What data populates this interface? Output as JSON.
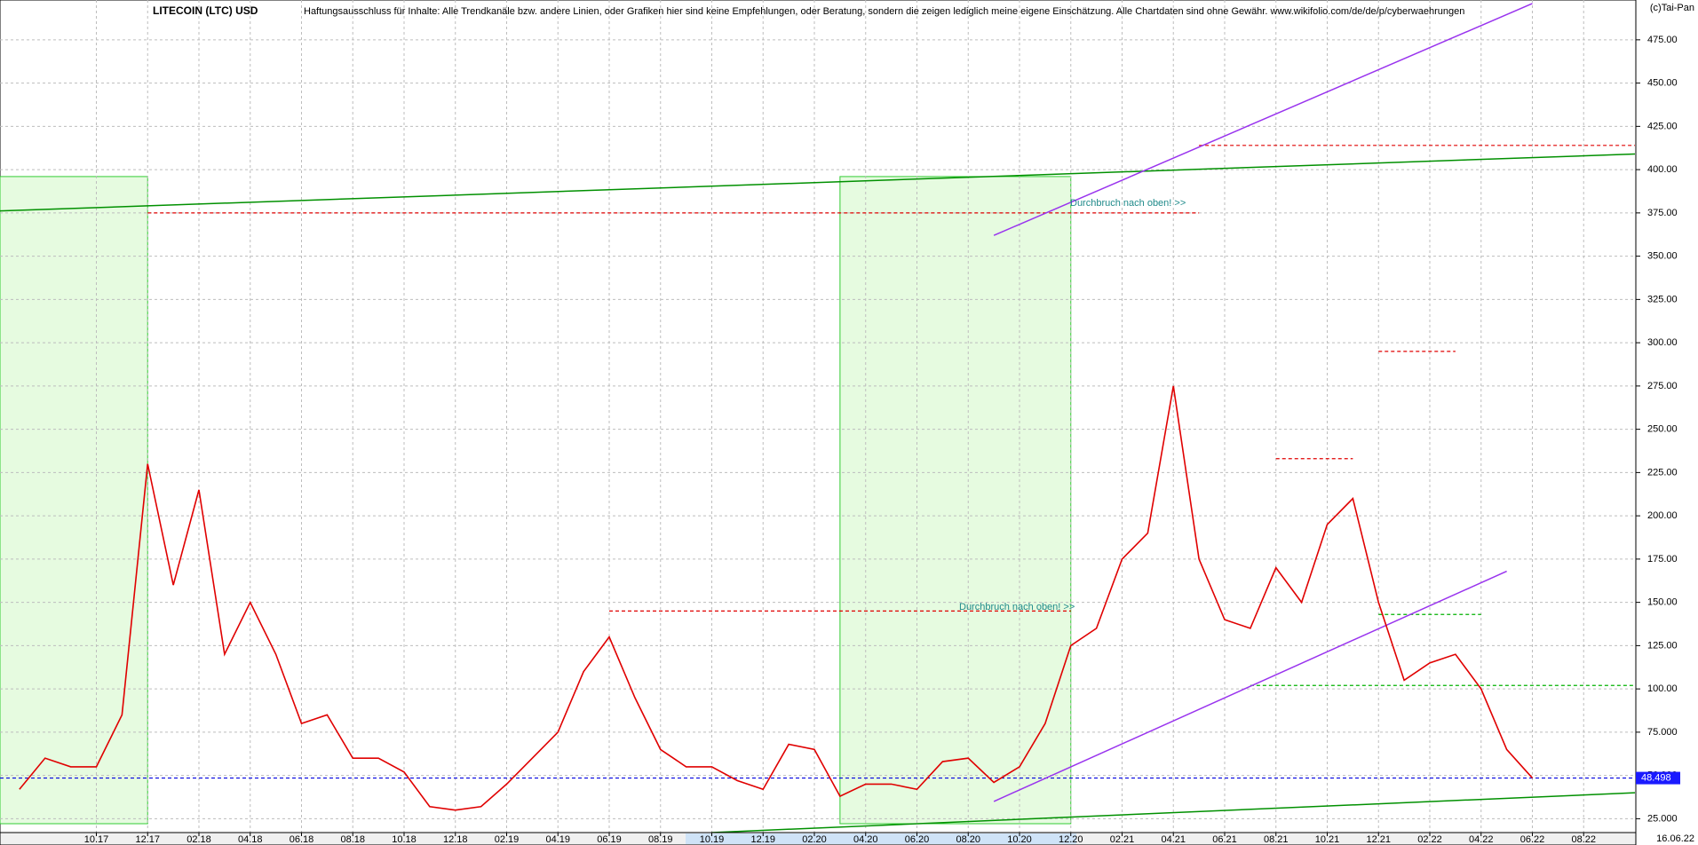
{
  "chart_data": {
    "type": "line",
    "title": "LITECOIN (LTC) USD",
    "subtitle": "Haftungsausschluss für Inhalte: Alle Trendkanäle bzw. andere Linien, oder Grafiken hier sind keine Empfehlungen, oder Beratung, sondern die zeigen lediglich meine eigene Einschätzung. Alle Chartdaten sind ohne Gewähr.  www.wikifolio.com/de/de/p/cyberwaehrungen",
    "copyright": "(c)Tai-Pan",
    "date_label": "16.06.22",
    "annotations": [
      "Durchbruch nach oben! >>",
      "Durchbruch nach oben! >>"
    ],
    "x": [
      "2017-07",
      "2017-08",
      "2017-09",
      "2017-10",
      "2017-11",
      "2017-12",
      "2018-01",
      "2018-02",
      "2018-03",
      "2018-04",
      "2018-05",
      "2018-06",
      "2018-07",
      "2018-08",
      "2018-09",
      "2018-10",
      "2018-11",
      "2018-12",
      "2019-01",
      "2019-02",
      "2019-03",
      "2019-04",
      "2019-05",
      "2019-06",
      "2019-07",
      "2019-08",
      "2019-09",
      "2019-10",
      "2019-11",
      "2019-12",
      "2020-01",
      "2020-02",
      "2020-03",
      "2020-04",
      "2020-05",
      "2020-06",
      "2020-07",
      "2020-08",
      "2020-09",
      "2020-10",
      "2020-11",
      "2020-12",
      "2021-01",
      "2021-02",
      "2021-03",
      "2021-04",
      "2021-05",
      "2021-06",
      "2021-07",
      "2021-08",
      "2021-09",
      "2021-10",
      "2021-11",
      "2021-12",
      "2022-01",
      "2022-02",
      "2022-03",
      "2022-04",
      "2022-05",
      "2022-06"
    ],
    "series": [
      {
        "name": "LTC",
        "color": "#e00000",
        "values": [
          42,
          60,
          55,
          55,
          85,
          230,
          160,
          215,
          120,
          150,
          120,
          80,
          85,
          60,
          60,
          52,
          32,
          30,
          32,
          45,
          60,
          75,
          110,
          130,
          95,
          65,
          55,
          55,
          47,
          42,
          68,
          65,
          38,
          45,
          45,
          42,
          58,
          60,
          46,
          55,
          80,
          125,
          135,
          175,
          190,
          275,
          175,
          140,
          135,
          170,
          150,
          195,
          210,
          150,
          105,
          115,
          120,
          100,
          65,
          48.498
        ]
      }
    ],
    "xlim": [
      "2017-06",
      "2022-10"
    ],
    "xticks": [
      {
        "value": "2017-10",
        "label": "10.17"
      },
      {
        "value": "2017-12",
        "label": "12.17"
      },
      {
        "value": "2018-02",
        "label": "02.18"
      },
      {
        "value": "2018-04",
        "label": "04.18"
      },
      {
        "value": "2018-06",
        "label": "06.18"
      },
      {
        "value": "2018-08",
        "label": "08.18"
      },
      {
        "value": "2018-10",
        "label": "10.18"
      },
      {
        "value": "2018-12",
        "label": "12.18"
      },
      {
        "value": "2019-02",
        "label": "02.19"
      },
      {
        "value": "2019-04",
        "label": "04.19"
      },
      {
        "value": "2019-06",
        "label": "06.19"
      },
      {
        "value": "2019-08",
        "label": "08.19"
      },
      {
        "value": "2019-10",
        "label": "10.19"
      },
      {
        "value": "2019-12",
        "label": "12.19"
      },
      {
        "value": "2020-02",
        "label": "02.20"
      },
      {
        "value": "2020-04",
        "label": "04.20"
      },
      {
        "value": "2020-06",
        "label": "06.20"
      },
      {
        "value": "2020-08",
        "label": "08.20"
      },
      {
        "value": "2020-10",
        "label": "10.20"
      },
      {
        "value": "2020-12",
        "label": "12.20"
      },
      {
        "value": "2021-02",
        "label": "02.21"
      },
      {
        "value": "2021-04",
        "label": "04.21"
      },
      {
        "value": "2021-06",
        "label": "06.21"
      },
      {
        "value": "2021-08",
        "label": "08.21"
      },
      {
        "value": "2021-10",
        "label": "10.21"
      },
      {
        "value": "2021-12",
        "label": "12.21"
      },
      {
        "value": "2022-02",
        "label": "02.22"
      },
      {
        "value": "2022-04",
        "label": "04.22"
      },
      {
        "value": "2022-06",
        "label": "06.22"
      },
      {
        "value": "2022-08",
        "label": "08.22"
      }
    ],
    "ylim": [
      17,
      498
    ],
    "yticks": [
      {
        "value": 25,
        "label": "25.000"
      },
      {
        "value": 50,
        "label": "50.000"
      },
      {
        "value": 75,
        "label": "75.000"
      },
      {
        "value": 100,
        "label": "100.00"
      },
      {
        "value": 125,
        "label": "125.00"
      },
      {
        "value": 150,
        "label": "150.00"
      },
      {
        "value": 175,
        "label": "175.00"
      },
      {
        "value": 200,
        "label": "200.00"
      },
      {
        "value": 225,
        "label": "225.00"
      },
      {
        "value": 250,
        "label": "250.00"
      },
      {
        "value": 275,
        "label": "275.00"
      },
      {
        "value": 300,
        "label": "300.00"
      },
      {
        "value": 325,
        "label": "325.00"
      },
      {
        "value": 350,
        "label": "350.00"
      },
      {
        "value": 375,
        "label": "375.00"
      },
      {
        "value": 400,
        "label": "400.00"
      },
      {
        "value": 425,
        "label": "425.00"
      },
      {
        "value": 450,
        "label": "450.00"
      },
      {
        "value": 475,
        "label": "475.00"
      }
    ],
    "grid": true,
    "zones": [
      {
        "from": "2017-06",
        "to": "2017-12",
        "color": "#e6fbe0"
      },
      {
        "from": "2020-03",
        "to": "2020-12",
        "color": "#e6fbe0"
      }
    ],
    "levels": [
      {
        "y": 375,
        "from": "2017-12",
        "to": "2021-05",
        "color": "#e00000"
      },
      {
        "y": 414,
        "from": "2021-05",
        "to": "2022-10",
        "color": "#e00000"
      },
      {
        "y": 145,
        "from": "2019-06",
        "to": "2020-12",
        "color": "#e00000"
      },
      {
        "y": 295,
        "from": "2021-12",
        "to": "2022-03",
        "color": "#e00000"
      },
      {
        "y": 233,
        "from": "2021-08",
        "to": "2021-11",
        "color": "#e00000"
      },
      {
        "y": 102,
        "from": "2021-07",
        "to": "2022-10",
        "color": "#00b000"
      },
      {
        "y": 143,
        "from": "2021-12",
        "to": "2022-04",
        "color": "#00b000"
      },
      {
        "y": 48.498,
        "from": "2017-06",
        "to": "2022-10",
        "color": "#0000e0"
      }
    ],
    "trend_lines": [
      {
        "x": [
          "2017-06",
          "2022-10"
        ],
        "y": [
          376,
          409
        ],
        "color": "#009000"
      },
      {
        "x": [
          "2019-10",
          "2022-10"
        ],
        "y": [
          17,
          40
        ],
        "color": "#009000"
      },
      {
        "x": [
          "2020-09",
          "2022-06"
        ],
        "y": [
          362,
          496
        ],
        "color": "#9933ee"
      },
      {
        "x": [
          "2020-09",
          "2022-05"
        ],
        "y": [
          35,
          168
        ],
        "color": "#9933ee"
      }
    ]
  }
}
